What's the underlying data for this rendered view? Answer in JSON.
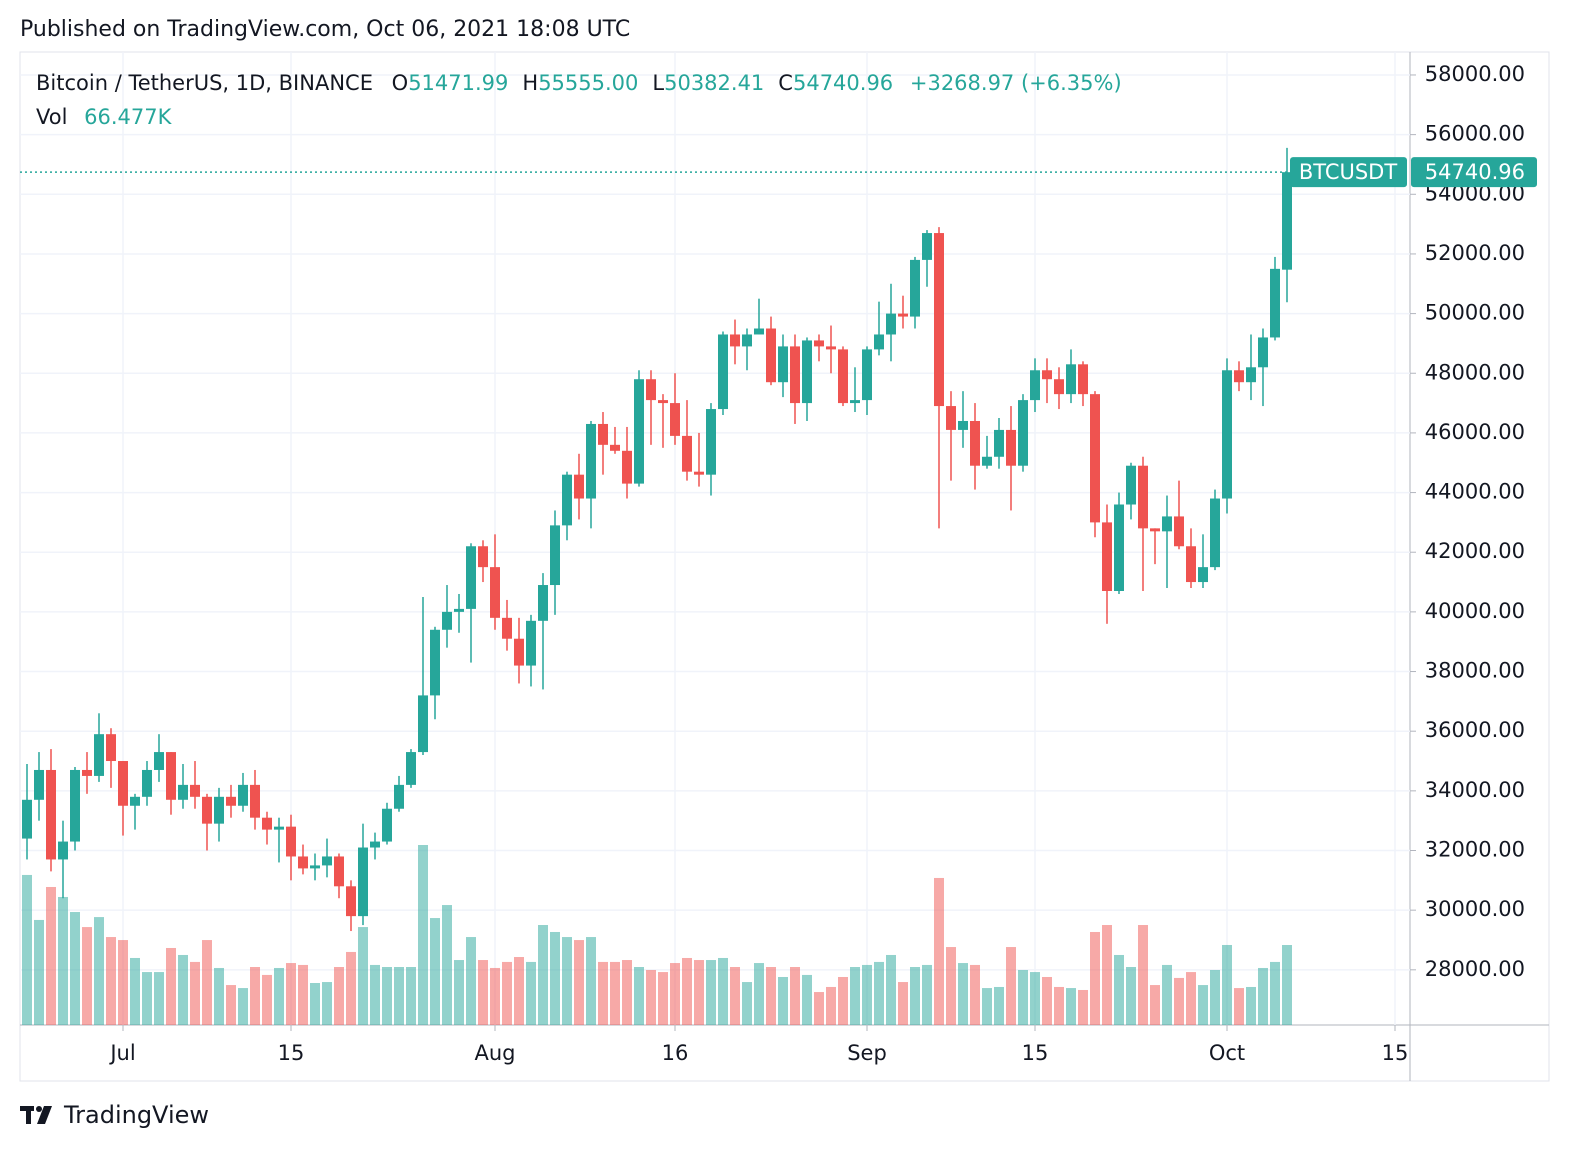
{
  "header": {
    "published": "Published on TradingView.com, Oct 06, 2021 18:08 UTC"
  },
  "footer": {
    "brand": "TradingView"
  },
  "legend": {
    "symbol": "Bitcoin / TetherUS, 1D, BINANCE",
    "items": [
      {
        "key": "O",
        "value": "51471.99"
      },
      {
        "key": "H",
        "value": "55555.00"
      },
      {
        "key": "L",
        "value": "50382.41"
      },
      {
        "key": "C",
        "value": "54740.96"
      }
    ],
    "change": "+3268.97 (+6.35%)"
  },
  "chart_data": {
    "type": "candlestick",
    "x": [
      "2021-06-23",
      "2021-06-24",
      "2021-06-25",
      "2021-06-26",
      "2021-06-27",
      "2021-06-28",
      "2021-06-29",
      "2021-06-30",
      "2021-07-01",
      "2021-07-02",
      "2021-07-03",
      "2021-07-04",
      "2021-07-05",
      "2021-07-06",
      "2021-07-07",
      "2021-07-08",
      "2021-07-09",
      "2021-07-10",
      "2021-07-11",
      "2021-07-12",
      "2021-07-13",
      "2021-07-14",
      "2021-07-15",
      "2021-07-16",
      "2021-07-17",
      "2021-07-18",
      "2021-07-19",
      "2021-07-20",
      "2021-07-21",
      "2021-07-22",
      "2021-07-23",
      "2021-07-24",
      "2021-07-25",
      "2021-07-26",
      "2021-07-27",
      "2021-07-28",
      "2021-07-29",
      "2021-07-30",
      "2021-07-31",
      "2021-08-01",
      "2021-08-02",
      "2021-08-03",
      "2021-08-04",
      "2021-08-05",
      "2021-08-06",
      "2021-08-07",
      "2021-08-08",
      "2021-08-09",
      "2021-08-10",
      "2021-08-11",
      "2021-08-12",
      "2021-08-13",
      "2021-08-14",
      "2021-08-15",
      "2021-08-16",
      "2021-08-17",
      "2021-08-18",
      "2021-08-19",
      "2021-08-20",
      "2021-08-21",
      "2021-08-22",
      "2021-08-23",
      "2021-08-24",
      "2021-08-25",
      "2021-08-26",
      "2021-08-27",
      "2021-08-28",
      "2021-08-29",
      "2021-08-30",
      "2021-08-31",
      "2021-09-01",
      "2021-09-02",
      "2021-09-03",
      "2021-09-04",
      "2021-09-05",
      "2021-09-06",
      "2021-09-07",
      "2021-09-08",
      "2021-09-09",
      "2021-09-10",
      "2021-09-11",
      "2021-09-12",
      "2021-09-13",
      "2021-09-14",
      "2021-09-15",
      "2021-09-16",
      "2021-09-17",
      "2021-09-18",
      "2021-09-19",
      "2021-09-20",
      "2021-09-21",
      "2021-09-22",
      "2021-09-23",
      "2021-09-24",
      "2021-09-25",
      "2021-09-26",
      "2021-09-27",
      "2021-09-28",
      "2021-09-29",
      "2021-09-30",
      "2021-10-01",
      "2021-10-02",
      "2021-10-03",
      "2021-10-04",
      "2021-10-05",
      "2021-10-06"
    ],
    "series": [
      {
        "name": "BTCUSDT",
        "up_color": "#26a69a",
        "down_color": "#ef5350",
        "last_price_label": "54740.96",
        "open": [
          32400,
          33700,
          34700,
          31700,
          32300,
          34700,
          34500,
          35900,
          35000,
          33500,
          33800,
          34700,
          35300,
          33700,
          34200,
          33800,
          32900,
          33800,
          33500,
          34200,
          33100,
          32700,
          32800,
          31800,
          31400,
          31500,
          31800,
          30800,
          29800,
          32100,
          32300,
          33400,
          34200,
          35300,
          37200,
          39400,
          40000,
          40100,
          42200,
          41500,
          39800,
          39100,
          38200,
          39700,
          40900,
          42900,
          44600,
          43800,
          46300,
          45600,
          45400,
          44300,
          47800,
          47100,
          47000,
          45900,
          44700,
          44600,
          46800,
          49300,
          48900,
          49300,
          49500,
          47700,
          48900,
          47000,
          49100,
          48900,
          48800,
          47000,
          47100,
          48800,
          49300,
          50000,
          49900,
          51800,
          52700,
          46900,
          46100,
          46400,
          44900,
          45200,
          46100,
          44900,
          47100,
          48100,
          47800,
          47300,
          48300,
          47300,
          43000,
          40700,
          43600,
          44900,
          42800,
          42700,
          43200,
          42200,
          41000,
          41500,
          43800,
          48100,
          47700,
          48200,
          49200,
          51471.99
        ],
        "high": [
          34900,
          35300,
          35400,
          33000,
          34800,
          35300,
          36600,
          36100,
          35000,
          33900,
          35000,
          35900,
          35300,
          34900,
          35000,
          33900,
          34100,
          34200,
          34600,
          34700,
          33300,
          33100,
          33200,
          32200,
          31900,
          32400,
          31900,
          31000,
          32900,
          32600,
          33600,
          34500,
          35400,
          40500,
          39500,
          40900,
          40600,
          42300,
          42400,
          42600,
          40400,
          39800,
          39900,
          41300,
          43400,
          44700,
          45300,
          46400,
          46700,
          46200,
          46200,
          48100,
          48100,
          47300,
          48000,
          47100,
          46000,
          47000,
          49400,
          49800,
          49500,
          50500,
          49900,
          49300,
          49300,
          49200,
          49300,
          49600,
          48900,
          48200,
          48900,
          50400,
          51000,
          50600,
          51900,
          52800,
          52900,
          47400,
          47400,
          47000,
          45900,
          46500,
          46900,
          47300,
          48500,
          48500,
          48200,
          48800,
          48400,
          47400,
          43600,
          44000,
          45000,
          45200,
          42800,
          43900,
          44400,
          42800,
          42600,
          44100,
          48500,
          48400,
          49300,
          49500,
          51900,
          55555
        ],
        "low": [
          31700,
          33000,
          31300,
          30400,
          32000,
          33900,
          34300,
          34100,
          32500,
          32700,
          33500,
          34300,
          33200,
          33400,
          33400,
          32000,
          32300,
          33100,
          33300,
          32700,
          32200,
          31600,
          31000,
          31200,
          31000,
          31100,
          30400,
          29300,
          29500,
          31700,
          32200,
          33300,
          34100,
          35200,
          36400,
          38800,
          39300,
          38300,
          41000,
          39400,
          38700,
          37600,
          37500,
          37400,
          39900,
          42400,
          43100,
          42800,
          44600,
          45300,
          43800,
          44200,
          45600,
          45500,
          45600,
          44400,
          44200,
          43900,
          46600,
          48300,
          48100,
          49300,
          47600,
          47200,
          46300,
          46400,
          48400,
          48000,
          46900,
          46700,
          46600,
          48600,
          48400,
          49500,
          49500,
          50900,
          42800,
          44400,
          45500,
          44100,
          44800,
          44800,
          43400,
          44700,
          46700,
          47000,
          46800,
          47000,
          46900,
          42500,
          39600,
          40600,
          43100,
          40700,
          41600,
          40800,
          42100,
          40800,
          40800,
          41400,
          43300,
          47400,
          47100,
          46900,
          49100,
          50382.41
        ],
        "close": [
          33700,
          34700,
          31700,
          32300,
          34700,
          34500,
          35900,
          35000,
          33500,
          33800,
          34700,
          35300,
          33700,
          34200,
          33800,
          32900,
          33800,
          33500,
          34200,
          33100,
          32700,
          32800,
          31800,
          31400,
          31500,
          31800,
          30800,
          29800,
          32100,
          32300,
          33400,
          34200,
          35300,
          37200,
          39400,
          40000,
          40100,
          42200,
          41500,
          39800,
          39100,
          38200,
          39700,
          40900,
          42900,
          44600,
          43800,
          46300,
          45600,
          45400,
          44300,
          47800,
          47100,
          47000,
          45900,
          44700,
          44600,
          46800,
          49300,
          48900,
          49300,
          49500,
          47700,
          48900,
          47000,
          49100,
          48900,
          48800,
          47000,
          47100,
          48800,
          49300,
          50000,
          49900,
          51800,
          52700,
          46900,
          46100,
          46400,
          44900,
          45200,
          46100,
          44900,
          47100,
          48100,
          47800,
          47300,
          48300,
          47300,
          43000,
          40700,
          43600,
          44900,
          42800,
          42700,
          43200,
          42200,
          41000,
          41500,
          43800,
          48100,
          47700,
          48200,
          49200,
          51500,
          54740.96
        ]
      },
      {
        "name": "Vol",
        "up_color": "rgba(38,166,154,0.5)",
        "down_color": "rgba(239,83,80,0.5)",
        "last_value_label": "66.477K",
        "values": [
          124.7,
          87.3,
          114.7,
          106.4,
          93.9,
          81.4,
          89.7,
          73.1,
          70.6,
          55.7,
          44.0,
          44.0,
          64.0,
          58.2,
          52.4,
          70.6,
          47.4,
          33.2,
          30.7,
          48.2,
          41.6,
          47.4,
          51.5,
          49.9,
          34.9,
          35.7,
          48.2,
          60.7,
          81.4,
          49.9,
          48.2,
          48.2,
          48.2,
          149.6,
          88.9,
          99.7,
          54.0,
          73.1,
          54.0,
          47.4,
          52.4,
          56.5,
          52.4,
          83.1,
          77.3,
          73.1,
          70.6,
          73.1,
          52.4,
          52.4,
          54.0,
          48.2,
          45.7,
          44.0,
          51.5,
          55.7,
          54.0,
          54.0,
          55.7,
          48.2,
          35.7,
          51.5,
          48.2,
          39.9,
          48.2,
          41.6,
          27.4,
          31.6,
          39.9,
          48.2,
          49.9,
          52.4,
          58.2,
          35.7,
          48.2,
          49.9,
          122.2,
          64.8,
          51.5,
          49.9,
          30.7,
          31.6,
          64.8,
          45.7,
          44.0,
          39.9,
          31.6,
          30.7,
          29.1,
          77.3,
          83.1,
          58.2,
          48.2,
          83.1,
          33.2,
          49.9,
          39.1,
          44.0,
          33.2,
          45.7,
          66.5,
          30.7,
          31.6,
          47.4,
          52.4,
          66.477
        ]
      }
    ],
    "ylim": [
      26150,
      58770
    ],
    "yticks": [
      {
        "value": 28000,
        "label": "28000.00"
      },
      {
        "value": 30000,
        "label": "30000.00"
      },
      {
        "value": 32000,
        "label": "32000.00"
      },
      {
        "value": 34000,
        "label": "34000.00"
      },
      {
        "value": 36000,
        "label": "36000.00"
      },
      {
        "value": 38000,
        "label": "38000.00"
      },
      {
        "value": 40000,
        "label": "40000.00"
      },
      {
        "value": 42000,
        "label": "42000.00"
      },
      {
        "value": 44000,
        "label": "44000.00"
      },
      {
        "value": 46000,
        "label": "46000.00"
      },
      {
        "value": 48000,
        "label": "48000.00"
      },
      {
        "value": 50000,
        "label": "50000.00"
      },
      {
        "value": 52000,
        "label": "52000.00"
      },
      {
        "value": 54000,
        "label": "54000.00"
      },
      {
        "value": 56000,
        "label": "56000.00"
      },
      {
        "value": 58000,
        "label": "58000.00"
      }
    ],
    "xticks": [
      {
        "value": "2021-07-01",
        "label": "Jul"
      },
      {
        "value": "2021-07-15",
        "label": "15"
      },
      {
        "value": "2021-08-01",
        "label": "Aug"
      },
      {
        "value": "2021-08-16",
        "label": "16"
      },
      {
        "value": "2021-09-01",
        "label": "Sep"
      },
      {
        "value": "2021-09-15",
        "label": "15"
      },
      {
        "value": "2021-10-01",
        "label": "Oct"
      },
      {
        "value": "2021-10-15",
        "label": "15"
      }
    ],
    "grid": true
  }
}
